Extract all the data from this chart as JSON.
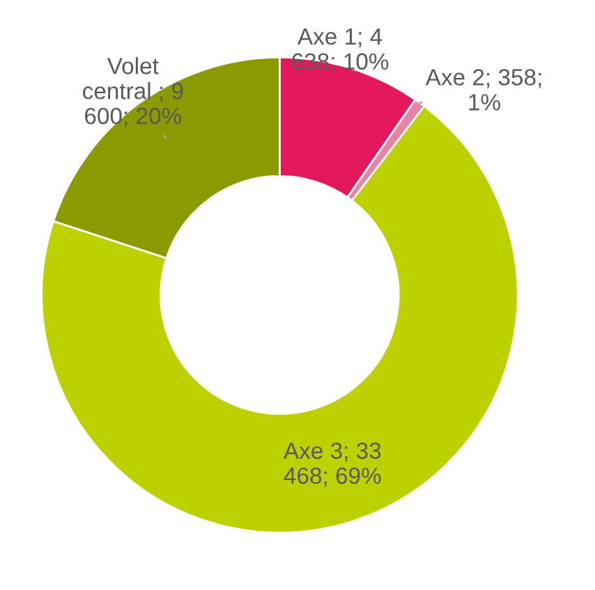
{
  "chart_data": {
    "type": "donut",
    "categories": [
      "Axe 1",
      "Axe 2",
      "Axe 3",
      "Volet central"
    ],
    "values": [
      4638,
      358,
      33468,
      9600
    ],
    "colors": [
      "#e4185c",
      "#e883a6",
      "#bdd000",
      "#8a9a00"
    ],
    "value_labels": [
      "; 4 638; 10%",
      "; 358; 1%",
      "; 33 468; 69%",
      " ; 9 600; 20%"
    ],
    "legend": false
  }
}
